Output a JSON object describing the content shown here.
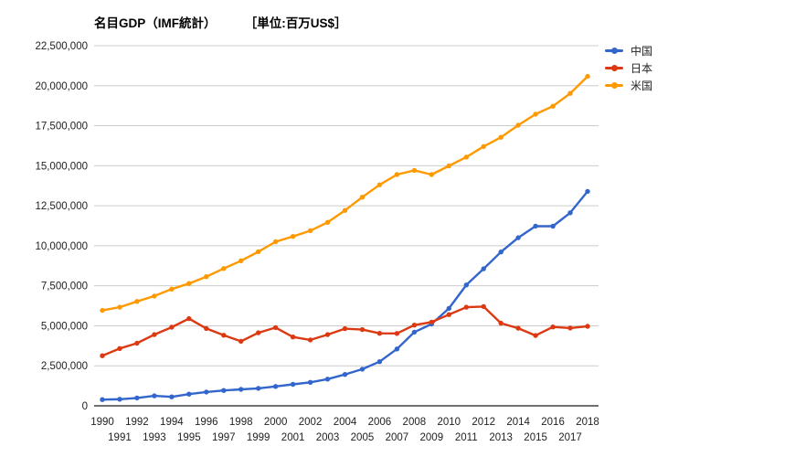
{
  "title": {
    "main": "名目GDP（IMF統計）",
    "unit": "［単位:百万US$］"
  },
  "chart_data": {
    "type": "line",
    "title": "名目GDP（IMF統計）",
    "unit_label": "［単位:百万US$］",
    "xlabel": "",
    "ylabel": "",
    "ylim": [
      0,
      22500000
    ],
    "ytick_interval": 2500000,
    "ytick_labels": [
      "0",
      "2,500,000",
      "5,000,000",
      "7,500,000",
      "10,000,000",
      "12,500,000",
      "15,000,000",
      "17,500,000",
      "20,000,000",
      "22,500,000"
    ],
    "grid": true,
    "gridline_color": "#cccccc",
    "axis_line_color": "#404040",
    "tick_label_color": "#222222",
    "legend_position": "top-right",
    "x": [
      1990,
      1991,
      1992,
      1993,
      1994,
      1995,
      1996,
      1997,
      1998,
      1999,
      2000,
      2001,
      2002,
      2003,
      2004,
      2005,
      2006,
      2007,
      2008,
      2009,
      2010,
      2011,
      2012,
      2013,
      2014,
      2015,
      2016,
      2017,
      2018
    ],
    "series": [
      {
        "key": "china",
        "name": "中国",
        "color": "#3366CC",
        "values": [
          390000,
          410000,
          490000,
          620000,
          560000,
          730000,
          860000,
          960000,
          1030000,
          1090000,
          1210000,
          1340000,
          1470000,
          1670000,
          1960000,
          2290000,
          2760000,
          3550000,
          4600000,
          5110000,
          6090000,
          7550000,
          8560000,
          9610000,
          10500000,
          11230000,
          11220000,
          12060000,
          13400000
        ]
      },
      {
        "key": "japan",
        "name": "日本",
        "color": "#DC3912",
        "values": [
          3130000,
          3580000,
          3910000,
          4450000,
          4910000,
          5450000,
          4830000,
          4410000,
          4030000,
          4560000,
          4890000,
          4300000,
          4120000,
          4450000,
          4820000,
          4760000,
          4530000,
          4520000,
          5040000,
          5230000,
          5700000,
          6160000,
          6200000,
          5160000,
          4850000,
          4390000,
          4930000,
          4860000,
          4970000
        ]
      },
      {
        "key": "usa",
        "name": "米国",
        "color": "#FF9900",
        "values": [
          5960000,
          6160000,
          6520000,
          6860000,
          7290000,
          7640000,
          8070000,
          8580000,
          9060000,
          9630000,
          10250000,
          10580000,
          10940000,
          11460000,
          12210000,
          13040000,
          13810000,
          14450000,
          14710000,
          14450000,
          14990000,
          15540000,
          16200000,
          16780000,
          17530000,
          18220000,
          18720000,
          19520000,
          20580000
        ]
      }
    ]
  }
}
